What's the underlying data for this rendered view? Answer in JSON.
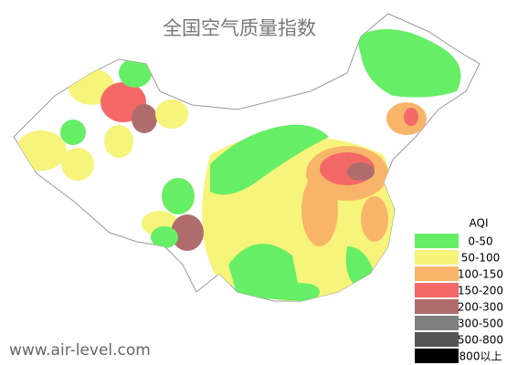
{
  "title": "全国空气质量指数",
  "watermark": "www.air-level.com",
  "legend": {
    "title": "AQI",
    "items": [
      {
        "label": "0-50",
        "color": "#66ee66"
      },
      {
        "label": "50-100",
        "color": "#f6f47a"
      },
      {
        "label": "100-150",
        "color": "#f8b56a"
      },
      {
        "label": "150-200",
        "color": "#f46868"
      },
      {
        "label": "200-300",
        "color": "#b06c6c"
      },
      {
        "label": "300-500",
        "color": "#808080"
      },
      {
        "label": "500-800",
        "color": "#555555"
      },
      {
        "label": "800以上",
        "color": "#000000"
      }
    ]
  }
}
